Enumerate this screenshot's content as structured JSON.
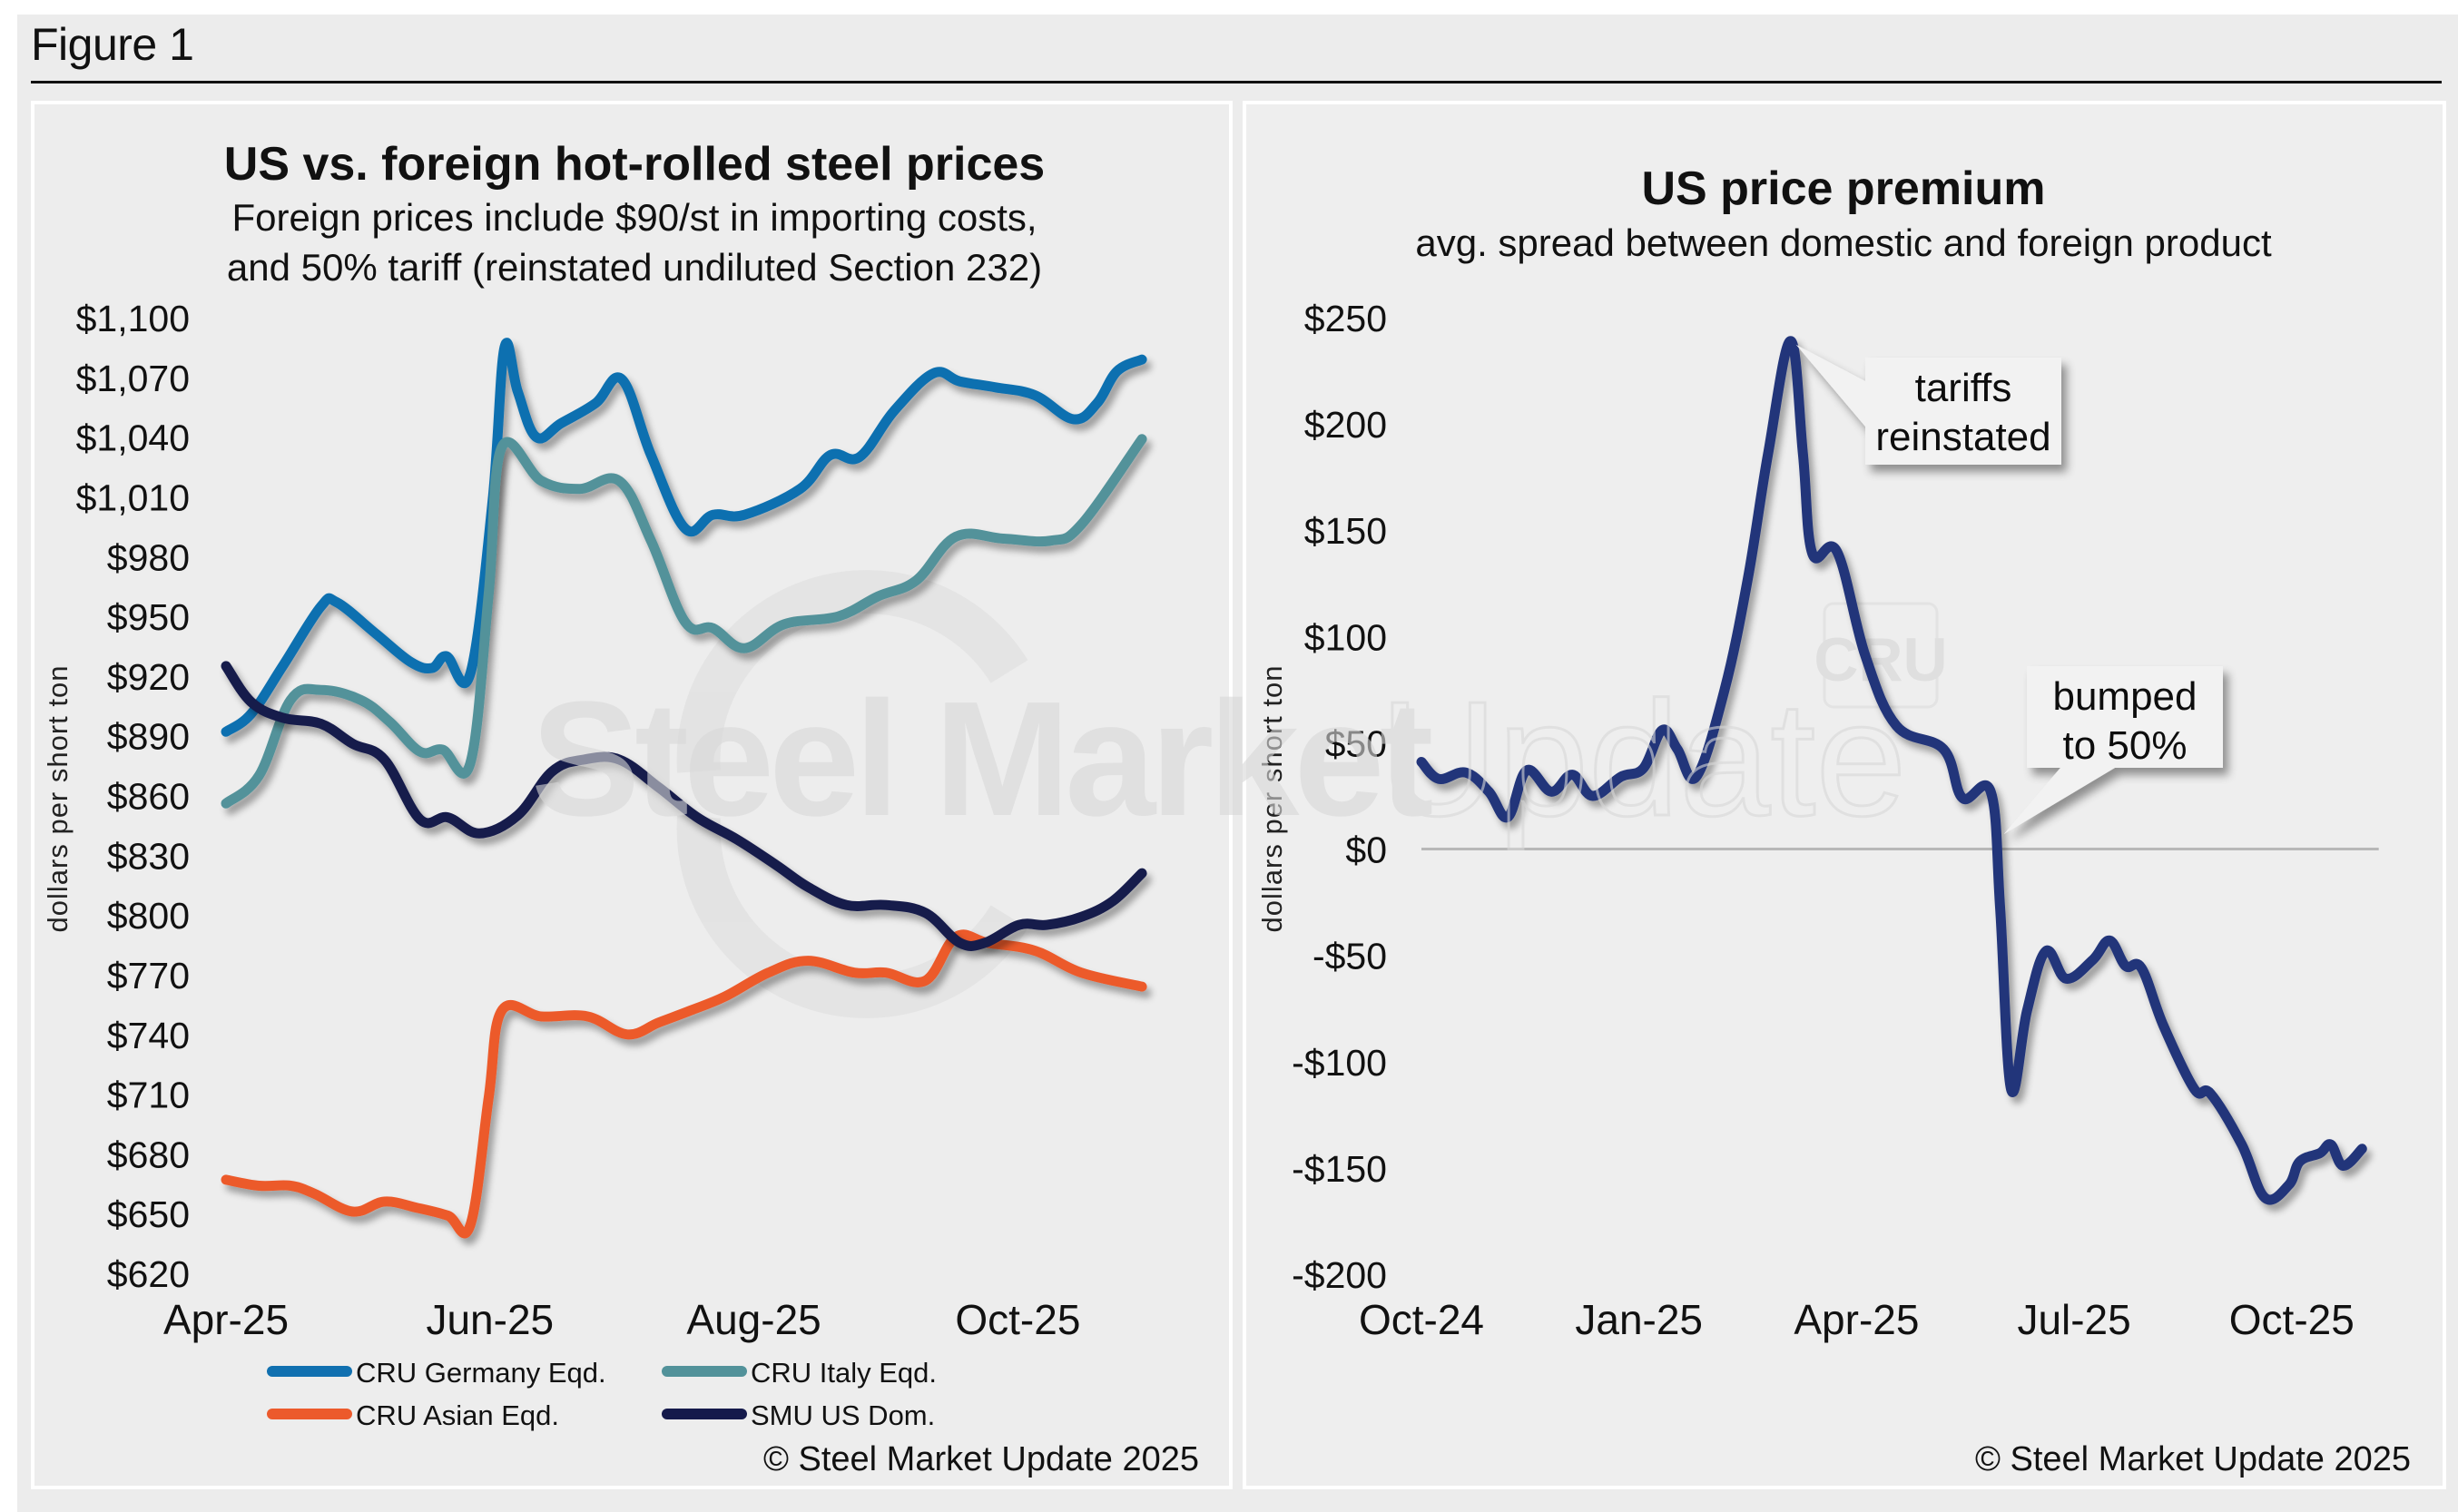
{
  "figure": {
    "label": "Figure 1"
  },
  "chart_data": [
    {
      "type": "line",
      "title": "US vs. foreign hot-rolled steel prices",
      "subtitle_lines": [
        "Foreign prices include $90/st in importing costs,",
        "and 50% tariff (reinstated undiluted Section 232)"
      ],
      "xlabel": "",
      "ylabel": "dollars per short ton",
      "x_unit": "months since Apr 2025",
      "xlim": [
        0,
        7.2
      ],
      "x_ticks": [
        {
          "label": "Apr-25",
          "value": 0
        },
        {
          "label": "Jun-25",
          "value": 2
        },
        {
          "label": "Aug-25",
          "value": 4
        },
        {
          "label": "Oct-25",
          "value": 6
        }
      ],
      "ylim": [
        620,
        1100
      ],
      "y_ticks": [
        {
          "label": "$1,100",
          "value": 1100
        },
        {
          "label": "$1,070",
          "value": 1070
        },
        {
          "label": "$1,040",
          "value": 1040
        },
        {
          "label": "$1,010",
          "value": 1010
        },
        {
          "label": "$980",
          "value": 980
        },
        {
          "label": "$950",
          "value": 950
        },
        {
          "label": "$920",
          "value": 920
        },
        {
          "label": "$890",
          "value": 890
        },
        {
          "label": "$860",
          "value": 860
        },
        {
          "label": "$830",
          "value": 830
        },
        {
          "label": "$800",
          "value": 800
        },
        {
          "label": "$770",
          "value": 770
        },
        {
          "label": "$740",
          "value": 740
        },
        {
          "label": "$710",
          "value": 710
        },
        {
          "label": "$680",
          "value": 680
        },
        {
          "label": "$650",
          "value": 650
        },
        {
          "label": "$620",
          "value": 620
        }
      ],
      "grid": false,
      "legend_position": "bottom",
      "series": [
        {
          "name": "CRU Germany Eqd.",
          "color": "#1070b0",
          "x": [
            0,
            0.19,
            0.43,
            0.72,
            0.84,
            1.14,
            1.4,
            1.56,
            1.67,
            1.85,
            2.02,
            2.11,
            2.21,
            2.35,
            2.54,
            2.8,
            3.0,
            3.22,
            3.48,
            3.69,
            3.93,
            4.35,
            4.58,
            4.8,
            5.06,
            5.36,
            5.56,
            5.83,
            6.13,
            6.42,
            6.6,
            6.75,
            6.94
          ],
          "values": [
            892,
            901,
            925,
            955,
            957,
            941,
            927,
            924,
            930,
            921,
            1008,
            1085,
            1063,
            1040,
            1047,
            1057,
            1069,
            1031,
            994,
            1001,
            1001,
            1014,
            1031,
            1030,
            1053,
            1072,
            1068,
            1065,
            1061,
            1049,
            1057,
            1073,
            1079
          ]
        },
        {
          "name": "CRU Italy Eqd.",
          "color": "#52929a",
          "x": [
            0,
            0.25,
            0.49,
            0.72,
            1.02,
            1.24,
            1.47,
            1.64,
            1.85,
            1.99,
            2.09,
            2.39,
            2.68,
            2.98,
            3.22,
            3.48,
            3.69,
            3.93,
            4.23,
            4.64,
            4.94,
            5.23,
            5.53,
            5.89,
            6.25,
            6.48,
            6.94
          ],
          "values": [
            856,
            870,
            908,
            913,
            908,
            897,
            882,
            883,
            876,
            961,
            1035,
            1018,
            1014,
            1018,
            988,
            947,
            944,
            934,
            946,
            950,
            960,
            968,
            990,
            989,
            988,
            996,
            1039
          ]
        },
        {
          "name": "CRU Asian Eqd.",
          "color": "#ec5a2c",
          "x": [
            0,
            0.25,
            0.49,
            0.67,
            0.96,
            1.2,
            1.44,
            1.68,
            1.85,
            1.99,
            2.09,
            2.39,
            2.74,
            3.04,
            3.28,
            3.52,
            3.78,
            4.11,
            4.41,
            4.76,
            5.0,
            5.3,
            5.53,
            5.77,
            6.13,
            6.48,
            6.94
          ],
          "values": [
            667,
            664,
            664,
            660,
            651,
            656,
            653,
            649,
            644,
            708,
            752,
            749,
            749,
            740,
            746,
            752,
            759,
            771,
            777,
            771,
            771,
            767,
            789,
            786,
            782,
            771,
            764
          ]
        },
        {
          "name": "SMU US Dom.",
          "color": "#151a4b",
          "x": [
            0,
            0.19,
            0.43,
            0.72,
            0.96,
            1.2,
            1.47,
            1.68,
            1.92,
            2.21,
            2.47,
            2.71,
            2.98,
            3.28,
            3.57,
            3.87,
            4.17,
            4.41,
            4.7,
            5.0,
            5.3,
            5.56,
            5.75,
            6.01,
            6.22,
            6.48,
            6.72,
            6.94
          ],
          "values": [
            925,
            907,
            899,
            896,
            886,
            878,
            848,
            849,
            841,
            850,
            872,
            878,
            878,
            864,
            849,
            838,
            825,
            814,
            805,
            805,
            801,
            786,
            786,
            795,
            795,
            799,
            807,
            821
          ]
        }
      ],
      "watermark": "Steel Market Update",
      "copyright": "© Steel Market Update 2025"
    },
    {
      "type": "line",
      "title": "US price premium",
      "subtitle_lines": [
        "avg. spread between domestic and foreign product"
      ],
      "xlabel": "",
      "ylabel": "dollars per short ton",
      "x_unit": "months since Oct 2024",
      "xlim": [
        0,
        13.2
      ],
      "x_ticks": [
        {
          "label": "Oct-24",
          "value": 0
        },
        {
          "label": "Jan-25",
          "value": 3
        },
        {
          "label": "Apr-25",
          "value": 6
        },
        {
          "label": "Jul-25",
          "value": 9
        },
        {
          "label": "Oct-25",
          "value": 12
        }
      ],
      "ylim": [
        -200,
        250
      ],
      "y_ticks": [
        {
          "label": "$250",
          "value": 250
        },
        {
          "label": "$200",
          "value": 200
        },
        {
          "label": "$150",
          "value": 150
        },
        {
          "label": "$100",
          "value": 100
        },
        {
          "label": "$50",
          "value": 50
        },
        {
          "label": "$0",
          "value": 0
        },
        {
          "label": "-$50",
          "value": -50
        },
        {
          "label": "-$100",
          "value": -100
        },
        {
          "label": "-$150",
          "value": -150
        },
        {
          "label": "-$200",
          "value": -200
        }
      ],
      "grid": false,
      "zero_line": true,
      "series": [
        {
          "name": "US price premium",
          "color": "#22347a",
          "x": [
            0,
            0.24,
            0.61,
            0.93,
            1.19,
            1.45,
            1.79,
            2.08,
            2.36,
            2.75,
            3.06,
            3.32,
            3.53,
            3.79,
            4.18,
            4.5,
            4.78,
            5.09,
            5.26,
            5.39,
            5.73,
            6.12,
            6.55,
            7.2,
            7.46,
            7.85,
            7.98,
            8.13,
            8.35,
            8.61,
            8.89,
            9.26,
            9.49,
            9.71,
            9.93,
            10.23,
            10.66,
            10.88,
            11.31,
            11.63,
            11.96,
            12.11,
            12.39,
            12.54,
            12.71,
            12.97
          ],
          "values": [
            41,
            33,
            36,
            27,
            15,
            37,
            27,
            35,
            25,
            34,
            38,
            56,
            47,
            34,
            75,
            127,
            186,
            239,
            186,
            139,
            140,
            91,
            58,
            47,
            24,
            27,
            -28,
            -113,
            -76,
            -48,
            -61,
            -52,
            -43,
            -55,
            -56,
            -83,
            -113,
            -115,
            -139,
            -164,
            -158,
            -147,
            -143,
            -139,
            -149,
            -141
          ]
        }
      ],
      "annotations": [
        {
          "text_lines": [
            "tariffs",
            "reinstated"
          ],
          "points_to": {
            "x": 5.09,
            "y": 239
          }
        },
        {
          "text_lines": [
            "bumped",
            "to 50%"
          ],
          "points_to": {
            "x": 7.98,
            "y": 7
          }
        }
      ],
      "watermark": "CRU",
      "copyright": "© Steel Market Update 2025"
    }
  ]
}
